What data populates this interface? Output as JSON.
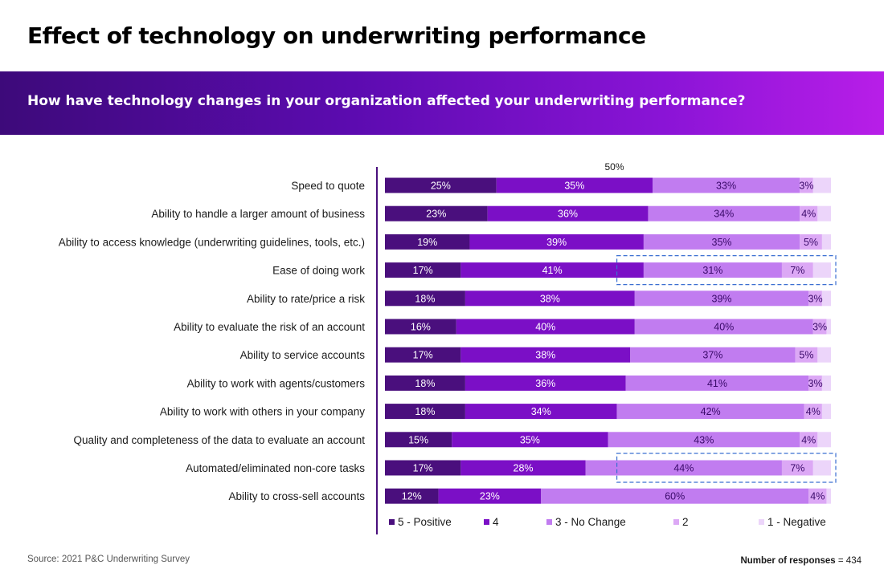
{
  "page_title": "Effect of technology on underwriting performance",
  "banner_question": "How have technology changes in your organization affected your underwriting performance?",
  "source": "Source: 2021 P&C Underwriting Survey",
  "responses": {
    "label": "Number of responses",
    "value": "= 434"
  },
  "colors": {
    "banner_start": "#3d0a7a",
    "banner_end": "#b81ee8",
    "highlight_box": "#3b6fd1"
  },
  "chart_data": {
    "type": "bar",
    "orientation": "horizontal",
    "stacked": true,
    "xlim": [
      0,
      100
    ],
    "reference_line": {
      "value": 50,
      "label": "50%"
    },
    "categories": [
      "Speed to quote",
      "Ability to handle a larger amount of business",
      "Ability to access knowledge (underwriting guidelines, tools, etc.)",
      "Ease of doing work",
      "Ability to rate/price a risk",
      "Ability to evaluate the risk of an account",
      "Ability to service accounts",
      "Ability to work with agents/customers",
      "Ability to work with others in your company",
      "Quality and completeness of the data to evaluate an account",
      "Automated/eliminated non-core tasks",
      "Ability to cross-sell accounts"
    ],
    "series": [
      {
        "name": "5 - Positive",
        "color": "#4a0f7d",
        "values": [
          25,
          23,
          19,
          17,
          18,
          16,
          17,
          18,
          18,
          15,
          17,
          12
        ],
        "labels": [
          "25%",
          "23%",
          "19%",
          "17%",
          "18%",
          "16%",
          "17%",
          "18%",
          "18%",
          "15%",
          "17%",
          "12%"
        ]
      },
      {
        "name": "4",
        "color": "#7b0fc6",
        "values": [
          35,
          36,
          39,
          41,
          38,
          40,
          38,
          36,
          34,
          35,
          28,
          23
        ],
        "labels": [
          "35%",
          "36%",
          "39%",
          "41%",
          "38%",
          "40%",
          "38%",
          "36%",
          "34%",
          "35%",
          "28%",
          "23%"
        ]
      },
      {
        "name": "3 - No Change",
        "color": "#c17cf0",
        "values": [
          33,
          34,
          35,
          31,
          39,
          40,
          37,
          41,
          42,
          43,
          44,
          60
        ],
        "labels": [
          "33%",
          "34%",
          "35%",
          "31%",
          "39%",
          "40%",
          "37%",
          "41%",
          "42%",
          "43%",
          "44%",
          "60%"
        ]
      },
      {
        "name": "2",
        "color": "#dca8f5",
        "values": [
          3,
          4,
          5,
          7,
          3,
          3,
          5,
          3,
          4,
          4,
          7,
          4
        ],
        "labels": [
          "3%",
          "4%",
          "5%",
          "7%",
          "3%",
          "3%",
          "5%",
          "3%",
          "4%",
          "4%",
          "7%",
          "4%"
        ]
      },
      {
        "name": "1 - Negative",
        "color": "#ecd5fa",
        "values": [
          4,
          3,
          2,
          4,
          2,
          1,
          3,
          2,
          2,
          3,
          4,
          1
        ],
        "labels": [
          "",
          "",
          "",
          "",
          "",
          "",
          "",
          "",
          "",
          "",
          "",
          ""
        ]
      }
    ],
    "highlights": [
      {
        "category": "Ease of doing work",
        "from": 52,
        "to": 100
      },
      {
        "category": "Automated/eliminated non-core tasks",
        "from": 52,
        "to": 100
      }
    ]
  }
}
